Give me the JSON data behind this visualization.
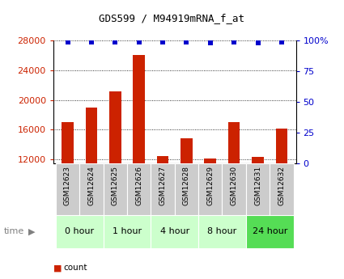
{
  "title": "GDS599 / M94919mRNA_f_at",
  "samples": [
    "GSM12623",
    "GSM12624",
    "GSM12625",
    "GSM12626",
    "GSM12627",
    "GSM12628",
    "GSM12629",
    "GSM12630",
    "GSM12631",
    "GSM12632"
  ],
  "counts": [
    17000,
    19000,
    21200,
    26100,
    12500,
    14800,
    12100,
    17000,
    12400,
    16200
  ],
  "percentiles": [
    99,
    99,
    99,
    99,
    99,
    99,
    98,
    99,
    98,
    99
  ],
  "ylim_left": [
    11500,
    28000
  ],
  "ylim_right": [
    0,
    100
  ],
  "yticks_left": [
    12000,
    16000,
    20000,
    24000,
    28000
  ],
  "yticks_right": [
    0,
    25,
    50,
    75,
    100
  ],
  "groups": [
    {
      "label": "0 hour",
      "start": 0,
      "end": 2
    },
    {
      "label": "1 hour",
      "start": 2,
      "end": 4
    },
    {
      "label": "4 hour",
      "start": 4,
      "end": 6
    },
    {
      "label": "8 hour",
      "start": 6,
      "end": 8
    },
    {
      "label": "24 hour",
      "start": 8,
      "end": 10
    }
  ],
  "group_colors": [
    "#ccffcc",
    "#ccffcc",
    "#ccffcc",
    "#ccffcc",
    "#55dd55"
  ],
  "bar_color": "#cc2200",
  "percentile_color": "#0000cc",
  "bar_width": 0.5,
  "tick_label_color_left": "#cc2200",
  "tick_label_color_right": "#0000cc",
  "bg_color": "#ffffff",
  "sample_bg_color": "#cccccc",
  "legend_count_color": "#cc2200",
  "legend_percentile_color": "#0000cc",
  "fig_width": 4.25,
  "fig_height": 3.45,
  "dpi": 100
}
